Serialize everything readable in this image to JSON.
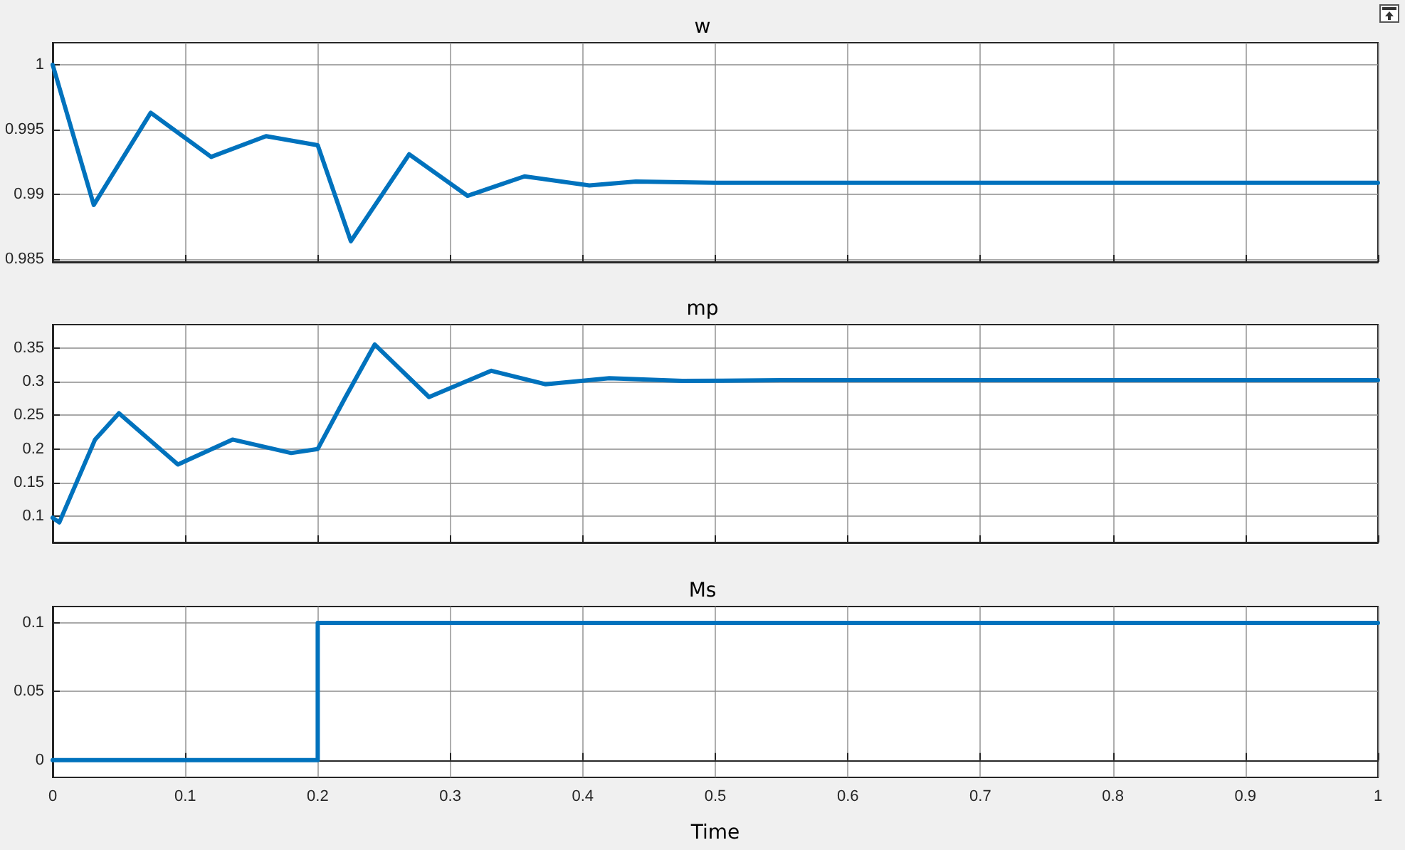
{
  "chart_data": [
    {
      "type": "line",
      "title": "w",
      "color": "#0072bd",
      "marker": "none",
      "grid": true,
      "tick_labels": "y",
      "xlim": [
        0,
        1
      ],
      "xticks": [
        0,
        0.1,
        0.2,
        0.3,
        0.4,
        0.5,
        0.6,
        0.7,
        0.8,
        0.9,
        1
      ],
      "ylim": [
        0.9848,
        1.0017
      ],
      "yticks": [
        0.985,
        0.99,
        0.995,
        1
      ],
      "x": [
        0,
        0.031,
        0.074,
        0.1196,
        0.161,
        0.2,
        0.225,
        0.269,
        0.313,
        0.356,
        0.405,
        0.44,
        0.5,
        0.6,
        0.7,
        0.8,
        0.9,
        1
      ],
      "values": [
        1,
        0.9892,
        0.9963,
        0.9929,
        0.9945,
        0.9938,
        0.9864,
        0.9931,
        0.9899,
        0.9914,
        0.9907,
        0.991,
        0.9909,
        0.9909,
        0.9909,
        0.9909,
        0.9909,
        0.9909
      ]
    },
    {
      "type": "line",
      "title": "mp",
      "color": "#0072bd",
      "marker": "none",
      "grid": true,
      "tick_labels": "y",
      "xlim": [
        0,
        1
      ],
      "xticks": [
        0,
        0.1,
        0.2,
        0.3,
        0.4,
        0.5,
        0.6,
        0.7,
        0.8,
        0.9,
        1
      ],
      "ylim": [
        0.0613,
        0.3845
      ],
      "yticks": [
        0.1,
        0.15,
        0.2,
        0.25,
        0.3,
        0.35
      ],
      "x": [
        0,
        0.005,
        0.032,
        0.05,
        0.0945,
        0.1357,
        0.18,
        0.2,
        0.221,
        0.243,
        0.284,
        0.331,
        0.372,
        0.42,
        0.475,
        0.55,
        0.7,
        0.85,
        1
      ],
      "values": [
        0.098,
        0.091,
        0.214,
        0.253,
        0.177,
        0.214,
        0.194,
        0.2,
        0.277,
        0.355,
        0.277,
        0.316,
        0.296,
        0.305,
        0.301,
        0.302,
        0.302,
        0.302,
        0.302
      ]
    },
    {
      "type": "step",
      "title": "Ms",
      "xlabel": "Time",
      "color": "#0072bd",
      "marker": "none",
      "grid": true,
      "xlim": [
        0,
        1
      ],
      "xticks": [
        0,
        0.1,
        0.2,
        0.3,
        0.4,
        0.5,
        0.6,
        0.7,
        0.8,
        0.9,
        1
      ],
      "ylim": [
        -0.0126,
        0.1119
      ],
      "yticks": [
        0,
        0.05,
        0.1
      ],
      "x": [
        0,
        0.2,
        1
      ],
      "values": [
        0,
        0.1,
        0.1
      ]
    }
  ]
}
